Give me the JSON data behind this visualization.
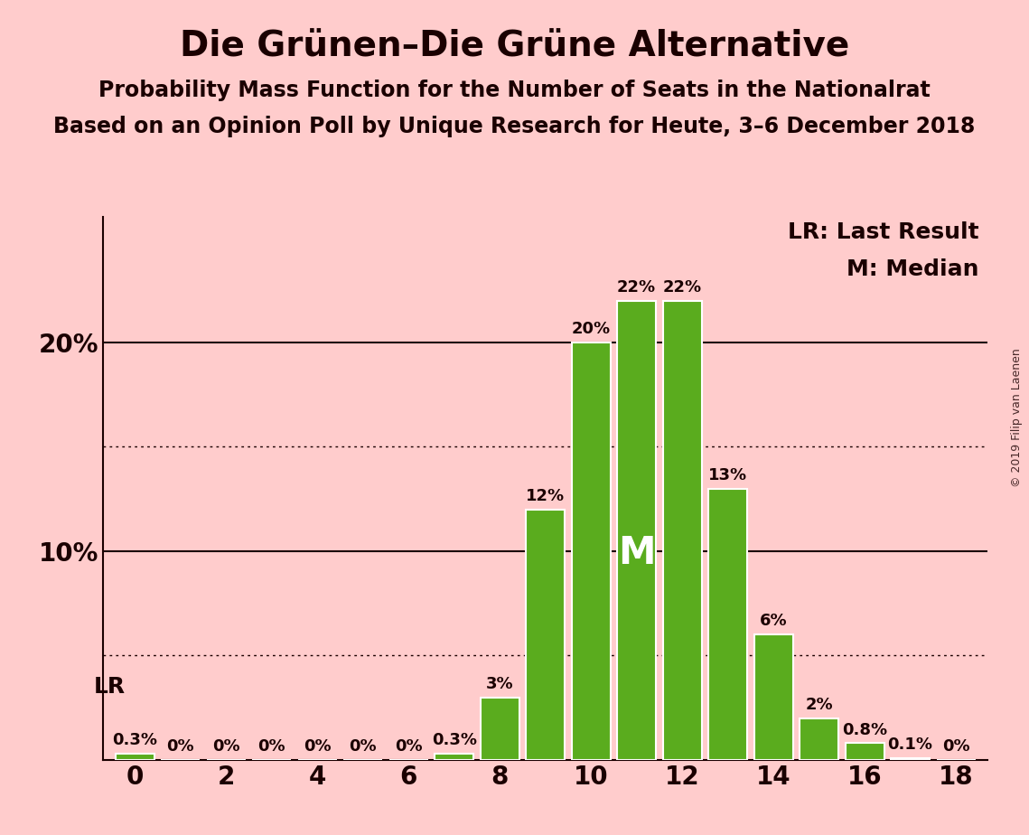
{
  "title": "Die Grünen–Die Grüne Alternative",
  "subtitle1": "Probability Mass Function for the Number of Seats in the Nationalrat",
  "subtitle2": "Based on an Opinion Poll by Unique Research for Heute, 3–6 December 2018",
  "watermark": "© 2019 Filip van Laenen",
  "seats": [
    0,
    1,
    2,
    3,
    4,
    5,
    6,
    7,
    8,
    9,
    10,
    11,
    12,
    13,
    14,
    15,
    16,
    17,
    18
  ],
  "probabilities": [
    0.3,
    0.0,
    0.0,
    0.0,
    0.0,
    0.0,
    0.0,
    0.3,
    3.0,
    12.0,
    20.0,
    22.0,
    22.0,
    13.0,
    6.0,
    2.0,
    0.8,
    0.1,
    0.0
  ],
  "bar_color": "#5aac1e",
  "bar_edge_color": "#ffffff",
  "background_color": "#ffcccc",
  "text_color": "#1a0000",
  "lr_seat": 0,
  "median_seat": 11,
  "ymax": 26,
  "dotted_lines": [
    5.0,
    15.0
  ],
  "solid_lines": [
    10.0,
    20.0
  ],
  "legend_lr": "LR: Last Result",
  "legend_m": "M: Median",
  "lr_label": "LR",
  "median_label": "M",
  "title_fontsize": 28,
  "subtitle_fontsize": 17,
  "bar_label_fontsize": 13,
  "axis_label_fontsize": 20,
  "legend_fontsize": 18,
  "watermark_fontsize": 9,
  "bar_labels": [
    "0.3%",
    "0%",
    "0%",
    "0%",
    "0%",
    "0%",
    "0%",
    "0.3%",
    "3%",
    "12%",
    "20%",
    "22%",
    "22%",
    "13%",
    "6%",
    "2%",
    "0.8%",
    "0.1%",
    "0%"
  ]
}
